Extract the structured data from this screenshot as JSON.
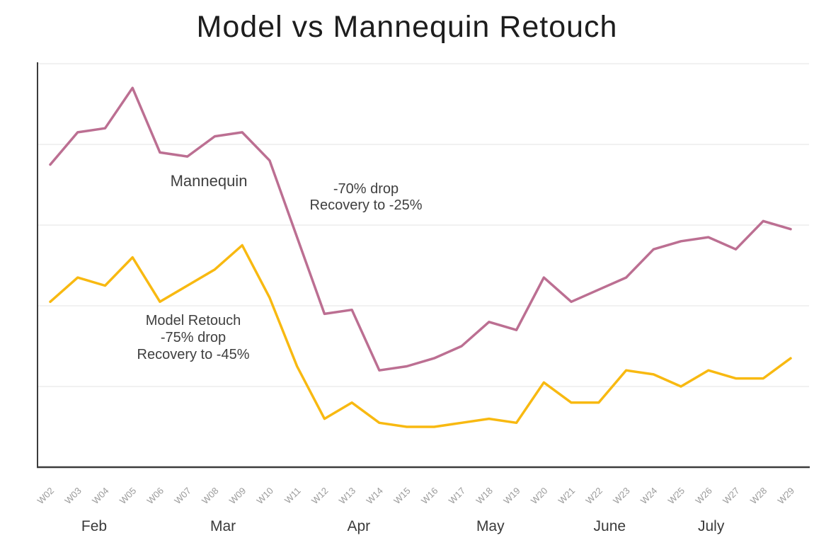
{
  "title": "Model vs Mannequin Retouch",
  "annotations": {
    "mannequin_label": "Mannequin",
    "mannequin_drop_note": {
      "lines": [
        "-70% drop",
        "Recovery to -25%"
      ]
    },
    "model_note": {
      "lines": [
        "Model Retouch",
        "-75% drop",
        "Recovery to -45%"
      ]
    }
  },
  "chart_data": {
    "type": "line",
    "title": "Model vs Mannequin Retouch",
    "xlabel": "",
    "ylabel": "",
    "categories": [
      "W02",
      "W03",
      "W04",
      "W05",
      "W06",
      "W07",
      "W08",
      "W09",
      "W10",
      "W11",
      "W12",
      "W13",
      "W14",
      "W15",
      "W16",
      "W17",
      "W18",
      "W19",
      "W20",
      "W21",
      "W22",
      "W23",
      "W24",
      "W25",
      "W26",
      "W27",
      "W28",
      "W29"
    ],
    "month_labels": [
      {
        "label": "Feb",
        "week_index": 1.6
      },
      {
        "label": "Mar",
        "week_index": 6.3
      },
      {
        "label": "Apr",
        "week_index": 11.25
      },
      {
        "label": "May",
        "week_index": 16.05
      },
      {
        "label": "June",
        "week_index": 20.4
      },
      {
        "label": "July",
        "week_index": 24.1
      }
    ],
    "series": [
      {
        "name": "Mannequin",
        "color": "#bc6f92",
        "annotation": "-70% drop, Recovery to -25%",
        "values": [
          75,
          83,
          84,
          94,
          78,
          77,
          82,
          83,
          76,
          57,
          38,
          39,
          24,
          25,
          27,
          30,
          36,
          34,
          47,
          41,
          44,
          47,
          54,
          56,
          57,
          54,
          61,
          59
        ]
      },
      {
        "name": "Model Retouch",
        "color": "#f8b911",
        "annotation": "-75% drop, Recovery to -45%",
        "values": [
          41,
          47,
          45,
          52,
          41,
          45,
          49,
          55,
          42,
          25,
          12,
          16,
          11,
          10,
          10,
          11,
          12,
          11,
          21,
          16,
          16,
          24,
          23,
          20,
          24,
          22,
          22,
          27
        ]
      }
    ],
    "ylim": [
      0,
      100
    ],
    "gridlines": [
      20,
      40,
      60,
      80,
      100
    ],
    "y_tick_labels_visible": false,
    "legend": "none",
    "grid": "horizontal only",
    "style": {
      "grid_color": "#e3e3e3",
      "axis_color": "#3c3c3c",
      "tick_label_color": "#9a9a9a",
      "month_label_color": "#3a3a3a"
    }
  }
}
